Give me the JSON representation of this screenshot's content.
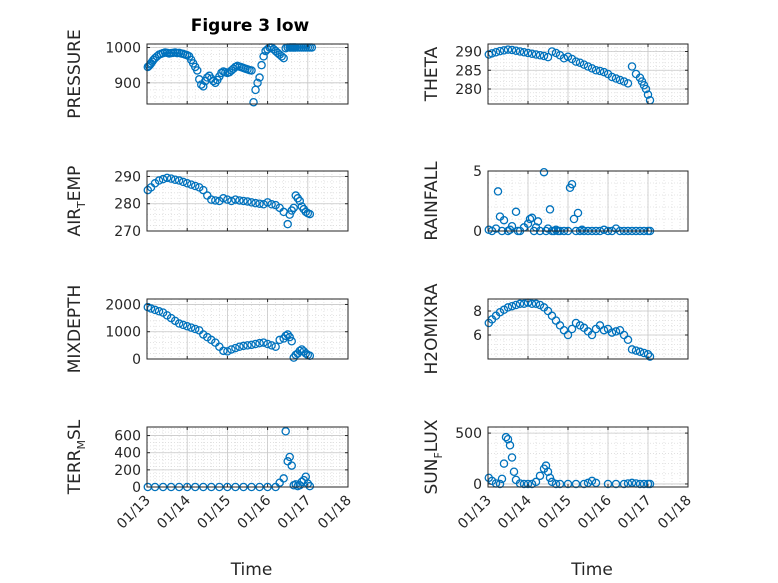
{
  "figure": {
    "title": "Figure 3 low",
    "marker_color": "#0072bd"
  },
  "chart_data": [
    {
      "type": "scatter",
      "panel": "PRESSURE",
      "ylabel": "PRESSURE",
      "ylim": [
        840,
        1010
      ],
      "yticks": [
        900,
        1000
      ],
      "xticks": [
        "01/13",
        "01/14",
        "01/15",
        "01/16",
        "01/17",
        "01/18"
      ],
      "x": [
        0.02,
        0.05,
        0.08,
        0.1,
        0.13,
        0.16,
        0.2,
        0.25,
        0.3,
        0.35,
        0.4,
        0.45,
        0.5,
        0.55,
        0.6,
        0.65,
        0.7,
        0.75,
        0.8,
        0.85,
        0.9,
        0.95,
        1.0,
        1.05,
        1.1,
        1.15,
        1.2,
        1.25,
        1.3,
        1.35,
        1.4,
        1.45,
        1.5,
        1.55,
        1.6,
        1.65,
        1.7,
        1.75,
        1.8,
        1.85,
        1.9,
        1.95,
        2.0,
        2.05,
        2.1,
        2.15,
        2.2,
        2.25,
        2.3,
        2.35,
        2.4,
        2.45,
        2.5,
        2.55,
        2.6,
        2.65,
        2.7,
        2.75,
        2.8,
        2.85,
        2.9,
        2.95,
        3.0,
        3.05,
        3.1,
        3.15,
        3.2,
        3.25,
        3.3,
        3.35,
        3.4,
        3.45,
        3.5,
        3.55,
        3.57,
        3.6,
        3.63,
        3.65,
        3.68,
        3.7,
        3.75,
        3.8,
        3.85,
        3.9,
        3.95,
        4.0,
        4.05,
        4.1
      ],
      "y": [
        945,
        948,
        952,
        955,
        960,
        965,
        970,
        975,
        980,
        982,
        984,
        986,
        985,
        983,
        984,
        985,
        986,
        984,
        985,
        983,
        982,
        980,
        978,
        975,
        965,
        955,
        945,
        935,
        910,
        895,
        890,
        905,
        915,
        920,
        912,
        905,
        900,
        908,
        918,
        928,
        932,
        930,
        928,
        930,
        935,
        940,
        945,
        948,
        946,
        944,
        942,
        940,
        938,
        936,
        935,
        845,
        880,
        900,
        915,
        950,
        975,
        990,
        995,
        1000,
        1000,
        995,
        990,
        985,
        980,
        975,
        970,
        998,
        1000,
        1000,
        1000,
        1000,
        1000,
        1000,
        1000,
        1000,
        1000,
        1000,
        1000,
        1000,
        1000,
        1000,
        1000,
        1000
      ]
    },
    {
      "type": "scatter",
      "panel": "THETA",
      "ylabel": "THETA",
      "ylim": [
        276,
        292
      ],
      "yticks": [
        280,
        285,
        290
      ],
      "xticks": [
        "01/13",
        "01/14",
        "01/15",
        "01/16",
        "01/17",
        "01/18"
      ],
      "x": [
        0.02,
        0.1,
        0.2,
        0.3,
        0.4,
        0.5,
        0.6,
        0.7,
        0.8,
        0.9,
        1.0,
        1.1,
        1.2,
        1.3,
        1.4,
        1.5,
        1.6,
        1.7,
        1.8,
        1.9,
        2.0,
        2.1,
        2.2,
        2.3,
        2.4,
        2.5,
        2.6,
        2.7,
        2.8,
        2.9,
        3.0,
        3.1,
        3.2,
        3.3,
        3.4,
        3.5,
        3.6,
        3.7,
        3.8,
        3.85,
        3.9,
        3.95,
        4.0,
        4.05
      ],
      "y": [
        289.2,
        289.5,
        289.8,
        290.1,
        290.3,
        290.5,
        290.4,
        290.2,
        290.0,
        289.8,
        289.6,
        289.4,
        289.2,
        289.0,
        288.8,
        288.5,
        290.0,
        289.6,
        289.0,
        288.2,
        288.6,
        288.0,
        287.3,
        287.0,
        286.5,
        286.0,
        285.5,
        285.0,
        284.8,
        284.5,
        284.0,
        283.2,
        282.8,
        282.4,
        282.0,
        281.5,
        286.0,
        284.0,
        283.0,
        282.0,
        281.0,
        280.0,
        278.5,
        277.0
      ]
    },
    {
      "type": "scatter",
      "panel": "AIR_TEMP",
      "ylabel": "AIR_TEMP",
      "ylim": [
        270,
        292
      ],
      "yticks": [
        270,
        280,
        290
      ],
      "xticks": [
        "01/13",
        "01/14",
        "01/15",
        "01/16",
        "01/17",
        "01/18"
      ],
      "x": [
        0.02,
        0.1,
        0.2,
        0.3,
        0.4,
        0.5,
        0.6,
        0.7,
        0.8,
        0.9,
        1.0,
        1.1,
        1.2,
        1.3,
        1.4,
        1.5,
        1.6,
        1.7,
        1.8,
        1.9,
        2.0,
        2.1,
        2.2,
        2.3,
        2.4,
        2.5,
        2.6,
        2.7,
        2.8,
        2.9,
        3.0,
        3.1,
        3.2,
        3.3,
        3.4,
        3.5,
        3.55,
        3.6,
        3.65,
        3.7,
        3.75,
        3.8,
        3.85,
        3.9,
        3.95,
        4.0,
        4.05
      ],
      "y": [
        285.0,
        286.0,
        287.5,
        288.5,
        289.0,
        289.5,
        289.2,
        288.8,
        288.5,
        288.0,
        287.5,
        287.0,
        286.5,
        286.0,
        285.0,
        283.0,
        281.5,
        281.2,
        281.0,
        282.0,
        281.5,
        281.0,
        281.5,
        281.2,
        281.0,
        280.8,
        280.5,
        280.2,
        280.0,
        279.8,
        280.5,
        279.8,
        279.5,
        278.5,
        277.0,
        272.5,
        276.0,
        277.5,
        278.5,
        283.0,
        282.0,
        281.0,
        279.0,
        278.0,
        277.0,
        276.5,
        276.2
      ]
    },
    {
      "type": "scatter",
      "panel": "RAINFALL",
      "ylabel": "RAINFALL",
      "ylim": [
        0,
        5
      ],
      "yticks": [
        0,
        5
      ],
      "xticks": [
        "01/13",
        "01/14",
        "01/15",
        "01/16",
        "01/17",
        "01/18"
      ],
      "x": [
        0.02,
        0.1,
        0.2,
        0.25,
        0.3,
        0.35,
        0.4,
        0.5,
        0.55,
        0.6,
        0.7,
        0.75,
        0.8,
        0.9,
        1.0,
        1.05,
        1.1,
        1.15,
        1.2,
        1.25,
        1.3,
        1.4,
        1.45,
        1.5,
        1.55,
        1.6,
        1.65,
        1.7,
        1.75,
        1.8,
        1.9,
        2.0,
        2.05,
        2.1,
        2.15,
        2.2,
        2.25,
        2.3,
        2.35,
        2.4,
        2.5,
        2.6,
        2.7,
        2.8,
        2.9,
        3.0,
        3.1,
        3.2,
        3.3,
        3.4,
        3.5,
        3.6,
        3.7,
        3.8,
        3.9,
        4.0,
        4.05
      ],
      "y": [
        0.1,
        0.0,
        0.2,
        3.3,
        1.2,
        0.0,
        0.9,
        0.0,
        0.1,
        0.4,
        1.6,
        0.0,
        0.0,
        0.3,
        0.6,
        1.0,
        1.1,
        0.0,
        0.3,
        0.8,
        0.0,
        4.9,
        0.0,
        0.2,
        1.8,
        0.0,
        0.0,
        0.1,
        0.0,
        0.0,
        0.0,
        0.0,
        3.6,
        3.9,
        1.0,
        0.0,
        1.5,
        0.0,
        0.1,
        0.0,
        0.0,
        0.0,
        0.0,
        0.0,
        0.1,
        0.0,
        0.0,
        0.2,
        0.0,
        0.0,
        0.0,
        0.0,
        0.0,
        0.0,
        0.0,
        0.0,
        0.0
      ]
    },
    {
      "type": "scatter",
      "panel": "MIXDEPTH",
      "ylabel": "MIXDEPTH",
      "ylim": [
        0,
        2200
      ],
      "yticks": [
        0,
        1000,
        2000
      ],
      "xticks": [
        "01/13",
        "01/14",
        "01/15",
        "01/16",
        "01/17",
        "01/18"
      ],
      "x": [
        0.02,
        0.1,
        0.2,
        0.3,
        0.4,
        0.5,
        0.6,
        0.7,
        0.8,
        0.9,
        1.0,
        1.1,
        1.2,
        1.3,
        1.4,
        1.5,
        1.6,
        1.7,
        1.8,
        1.9,
        2.0,
        2.1,
        2.2,
        2.3,
        2.4,
        2.5,
        2.6,
        2.7,
        2.8,
        2.9,
        3.0,
        3.1,
        3.2,
        3.3,
        3.4,
        3.45,
        3.5,
        3.55,
        3.6,
        3.65,
        3.7,
        3.75,
        3.8,
        3.85,
        3.9,
        3.95,
        4.0,
        4.05
      ],
      "y": [
        1900,
        1850,
        1800,
        1750,
        1700,
        1600,
        1500,
        1400,
        1300,
        1250,
        1200,
        1150,
        1100,
        1050,
        900,
        800,
        700,
        600,
        450,
        300,
        280,
        350,
        400,
        450,
        480,
        500,
        520,
        550,
        580,
        600,
        550,
        500,
        450,
        700,
        750,
        850,
        900,
        800,
        650,
        50,
        150,
        200,
        300,
        350,
        280,
        200,
        150,
        120
      ]
    },
    {
      "type": "scatter",
      "panel": "H2OMIXRA",
      "ylabel": "H2OMIXRA",
      "ylim": [
        4,
        9
      ],
      "yticks": [
        6,
        8
      ],
      "xticks": [
        "01/13",
        "01/14",
        "01/15",
        "01/16",
        "01/17",
        "01/18"
      ],
      "x": [
        0.02,
        0.1,
        0.2,
        0.3,
        0.4,
        0.5,
        0.6,
        0.7,
        0.8,
        0.9,
        1.0,
        1.1,
        1.2,
        1.3,
        1.4,
        1.5,
        1.6,
        1.7,
        1.8,
        1.9,
        2.0,
        2.1,
        2.2,
        2.3,
        2.4,
        2.5,
        2.6,
        2.7,
        2.8,
        2.9,
        3.0,
        3.1,
        3.2,
        3.3,
        3.4,
        3.5,
        3.6,
        3.7,
        3.8,
        3.9,
        4.0,
        4.05
      ],
      "y": [
        7.0,
        7.3,
        7.6,
        7.9,
        8.1,
        8.3,
        8.4,
        8.5,
        8.6,
        8.6,
        8.7,
        8.6,
        8.6,
        8.5,
        8.3,
        8.0,
        7.6,
        7.2,
        6.8,
        6.4,
        6.0,
        6.5,
        7.0,
        6.8,
        6.6,
        6.3,
        6.0,
        6.5,
        6.8,
        6.4,
        6.5,
        6.2,
        6.3,
        6.4,
        6.0,
        5.6,
        4.8,
        4.7,
        4.6,
        4.5,
        4.4,
        4.2
      ]
    },
    {
      "type": "scatter",
      "panel": "TERR_MSL",
      "ylabel": "TERR_MSL",
      "ylim": [
        0,
        700
      ],
      "yticks": [
        0,
        200,
        400,
        600
      ],
      "xticks": [
        "01/13",
        "01/14",
        "01/15",
        "01/16",
        "01/17",
        "01/18"
      ],
      "x": [
        0.02,
        0.2,
        0.4,
        0.6,
        0.8,
        1.0,
        1.2,
        1.4,
        1.6,
        1.8,
        2.0,
        2.2,
        2.4,
        2.6,
        2.8,
        3.0,
        3.2,
        3.3,
        3.4,
        3.45,
        3.5,
        3.55,
        3.6,
        3.65,
        3.7,
        3.75,
        3.8,
        3.85,
        3.9,
        3.95,
        4.0,
        4.05
      ],
      "y": [
        0,
        0,
        0,
        0,
        0,
        0,
        0,
        0,
        0,
        0,
        0,
        0,
        0,
        0,
        0,
        0,
        0,
        50,
        100,
        650,
        300,
        350,
        250,
        20,
        30,
        10,
        20,
        60,
        80,
        120,
        40,
        10
      ]
    },
    {
      "type": "scatter",
      "panel": "SUN_FLUX",
      "ylabel": "SUN_FLUX",
      "ylim": [
        -30,
        560
      ],
      "yticks": [
        0,
        500
      ],
      "xticks": [
        "01/13",
        "01/14",
        "01/15",
        "01/16",
        "01/17",
        "01/18"
      ],
      "x": [
        0.02,
        0.1,
        0.2,
        0.3,
        0.35,
        0.4,
        0.45,
        0.5,
        0.55,
        0.6,
        0.65,
        0.7,
        0.8,
        0.9,
        1.0,
        1.1,
        1.2,
        1.3,
        1.4,
        1.45,
        1.5,
        1.55,
        1.6,
        1.7,
        1.8,
        2.0,
        2.2,
        2.4,
        2.5,
        2.6,
        2.7,
        3.0,
        3.2,
        3.4,
        3.5,
        3.6,
        3.7,
        3.8,
        3.9,
        4.0,
        4.05
      ],
      "y": [
        60,
        30,
        5,
        0,
        50,
        200,
        460,
        440,
        380,
        260,
        120,
        40,
        5,
        0,
        0,
        0,
        20,
        80,
        150,
        180,
        120,
        60,
        20,
        0,
        0,
        0,
        0,
        0,
        10,
        30,
        10,
        0,
        0,
        0,
        5,
        10,
        5,
        0,
        0,
        0,
        0
      ]
    }
  ]
}
